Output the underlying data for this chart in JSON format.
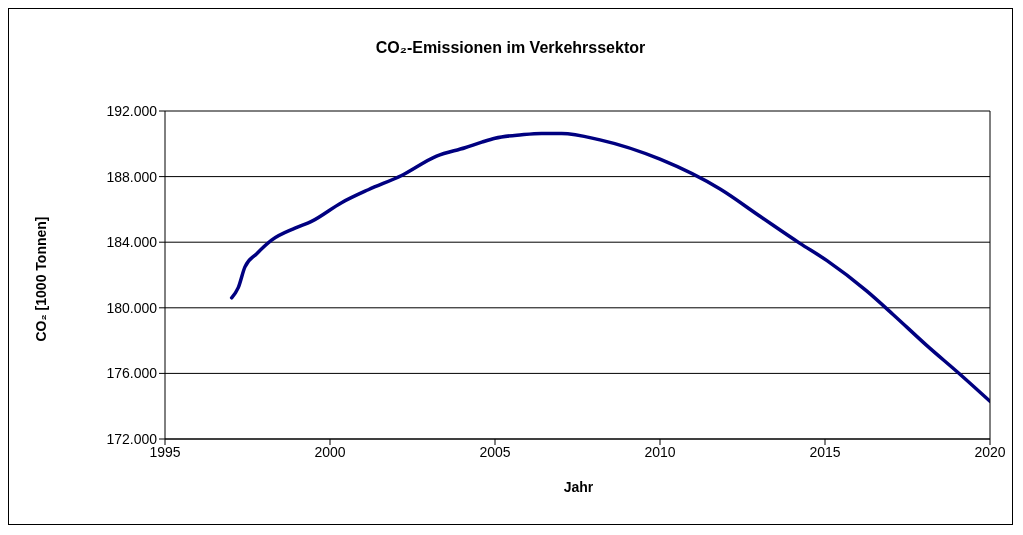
{
  "chart_data": {
    "type": "line",
    "title": "CO₂-Emissionen im Verkehrssektor",
    "xlabel": "Jahr",
    "ylabel": "CO₂ [1000 Tonnen]",
    "xlim": [
      1995,
      2020
    ],
    "xticks": [
      1995,
      2000,
      2005,
      2010,
      2015,
      2020
    ],
    "ylim": [
      172,
      192
    ],
    "yticks": [
      {
        "value": 172,
        "label": "172.000"
      },
      {
        "value": 176,
        "label": "176.000"
      },
      {
        "value": 180,
        "label": "180.000"
      },
      {
        "value": 184,
        "label": "184.000"
      },
      {
        "value": 188,
        "label": "188.000"
      },
      {
        "value": 192,
        "label": "192.000"
      }
    ],
    "grid": "y",
    "legend": false,
    "marker": "none",
    "line_style": "solid",
    "series": [
      {
        "color": "#000080",
        "x": [
          1997.02,
          1997.22,
          1997.42,
          1997.78,
          1998.23,
          1998.94,
          1999.44,
          2000.35,
          2001.16,
          2002.17,
          2003.23,
          2004.09,
          2004.6,
          2005.0,
          2005.81,
          2006.41,
          2007.02,
          2008.18,
          2010.0,
          2011.82,
          2013.03,
          2014.24,
          2015.05,
          2016.26,
          2017.07,
          2018.08,
          2019.09,
          2020.0
        ],
        "values": [
          180.61,
          181.23,
          182.48,
          183.3,
          184.13,
          184.86,
          185.27,
          186.41,
          187.2,
          188.07,
          189.25,
          189.76,
          190.1,
          190.34,
          190.55,
          190.63,
          190.63,
          190.24,
          189.06,
          187.24,
          185.58,
          183.93,
          182.89,
          181.03,
          179.58,
          177.71,
          175.95,
          174.3
        ]
      }
    ]
  }
}
